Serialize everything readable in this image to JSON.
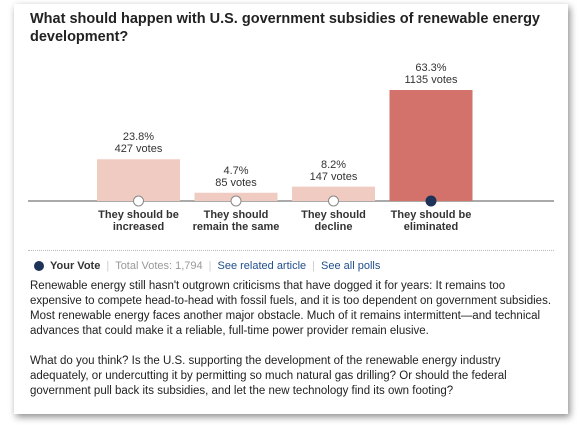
{
  "chart_data": {
    "type": "bar",
    "title": "What should happen with U.S. government subsidies of renewable energy development?",
    "categories": [
      "They should be increased",
      "They should remain the same",
      "They should decline",
      "They should be eliminated"
    ],
    "values": [
      23.8,
      4.7,
      8.2,
      63.3
    ],
    "value_labels": [
      "23.8%",
      "4.7%",
      "8.2%",
      "63.3%"
    ],
    "votes": [
      427,
      85,
      147,
      1135
    ],
    "vote_labels": [
      "427 votes",
      "85 votes",
      "147 votes",
      "1135 votes"
    ],
    "color": "#f0cbc2",
    "selected_color": "#d2726b",
    "selected": 3,
    "legend": "Your Vote",
    "total_votes": "Total Votes: 1,794",
    "links": [
      "See related article",
      "See all polls"
    ]
  },
  "body": {
    "paragraphs": [
      "Renewable energy still hasn't outgrown criticisms that have dogged it for years: It remains too expensive to compete head-to-head with fossil fuels, and it is too dependent on government subsidies. Most renewable energy faces another major obstacle. Much of it remains intermittent—and technical advances that could make it a reliable, full-time power provider remain elusive.",
      "What do you think? Is the U.S. supporting the development of the renewable energy industry adequately, or undercutting it by permitting so much natural gas drilling? Or should the federal government pull back its subsidies, and let the new technology find its own footing?"
    ]
  }
}
